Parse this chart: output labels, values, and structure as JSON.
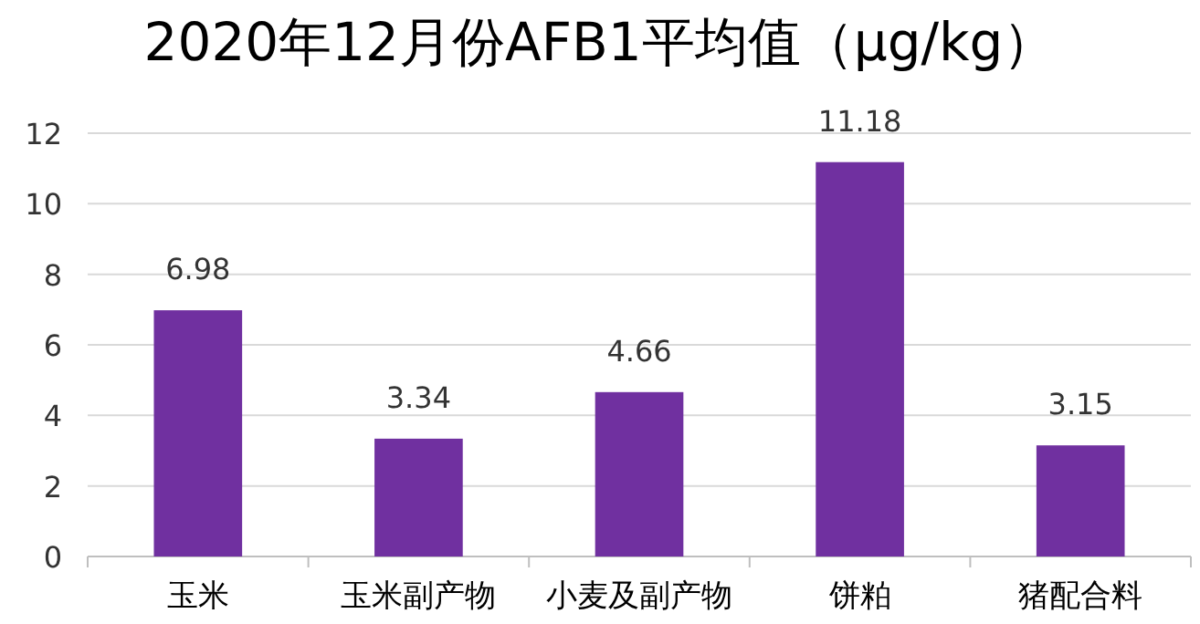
{
  "chart_data": {
    "type": "bar",
    "title": "2020年12月份AFB1平均值（µg/kg）",
    "categories": [
      "玉米",
      "玉米副产物",
      "小麦及副产物",
      "饼粕",
      "猪配合料"
    ],
    "values": [
      6.98,
      3.34,
      4.66,
      11.18,
      3.15
    ],
    "color": "#7030a0",
    "ylim": [
      0,
      12
    ],
    "yticks": [
      0,
      2,
      4,
      6,
      8,
      10,
      12
    ],
    "grid": "y",
    "data_labels": true
  }
}
